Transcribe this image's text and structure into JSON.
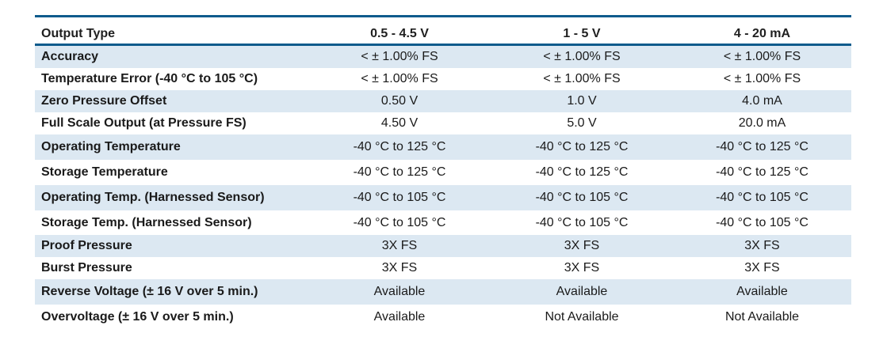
{
  "table": {
    "headers": [
      "Output Type",
      "0.5 - 4.5 V",
      "1 - 5 V",
      "4 - 20 mA"
    ],
    "rows": [
      {
        "label": "Accuracy",
        "values": [
          "< ± 1.00% FS",
          "< ± 1.00% FS",
          "< ± 1.00% FS"
        ]
      },
      {
        "label": "Temperature Error (-40 °C to 105 °C)",
        "values": [
          "< ± 1.00% FS",
          "< ± 1.00% FS",
          "< ± 1.00% FS"
        ]
      },
      {
        "label": "Zero Pressure Offset",
        "values": [
          "0.50 V",
          "1.0 V",
          "4.0 mA"
        ]
      },
      {
        "label": "Full Scale Output (at Pressure FS)",
        "values": [
          "4.50 V",
          "5.0 V",
          "20.0 mA"
        ]
      },
      {
        "label": "Operating Temperature",
        "values": [
          "-40 °C to 125 °C",
          "-40 °C to 125 °C",
          "-40 °C to 125 °C"
        ]
      },
      {
        "label": "Storage Temperature",
        "values": [
          "-40 °C to 125 °C",
          "-40 °C to 125 °C",
          "-40 °C to 125 °C"
        ]
      },
      {
        "label": "Operating Temp. (Harnessed Sensor)",
        "values": [
          "-40 °C to 105 °C",
          "-40 °C to 105 °C",
          "-40 °C to 105 °C"
        ]
      },
      {
        "label": "Storage Temp. (Harnessed Sensor)",
        "values": [
          "-40 °C to 105 °C",
          "-40 °C to 105 °C",
          "-40 °C to 105 °C"
        ]
      },
      {
        "label": "Proof Pressure",
        "values": [
          "3X FS",
          "3X FS",
          "3X FS"
        ]
      },
      {
        "label": "Burst Pressure",
        "values": [
          "3X FS",
          "3X FS",
          "3X FS"
        ]
      },
      {
        "label": "Reverse Voltage (± 16 V over 5 min.)",
        "values": [
          "Available",
          "Available",
          "Available"
        ]
      },
      {
        "label": "Overvoltage (± 16 V over 5 min.)",
        "values": [
          "Available",
          "Not Available",
          "Not Available"
        ]
      }
    ]
  },
  "colors": {
    "rule": "#0d5b8c",
    "shaded_row": "#dce8f2",
    "plain_row": "#ffffff"
  }
}
